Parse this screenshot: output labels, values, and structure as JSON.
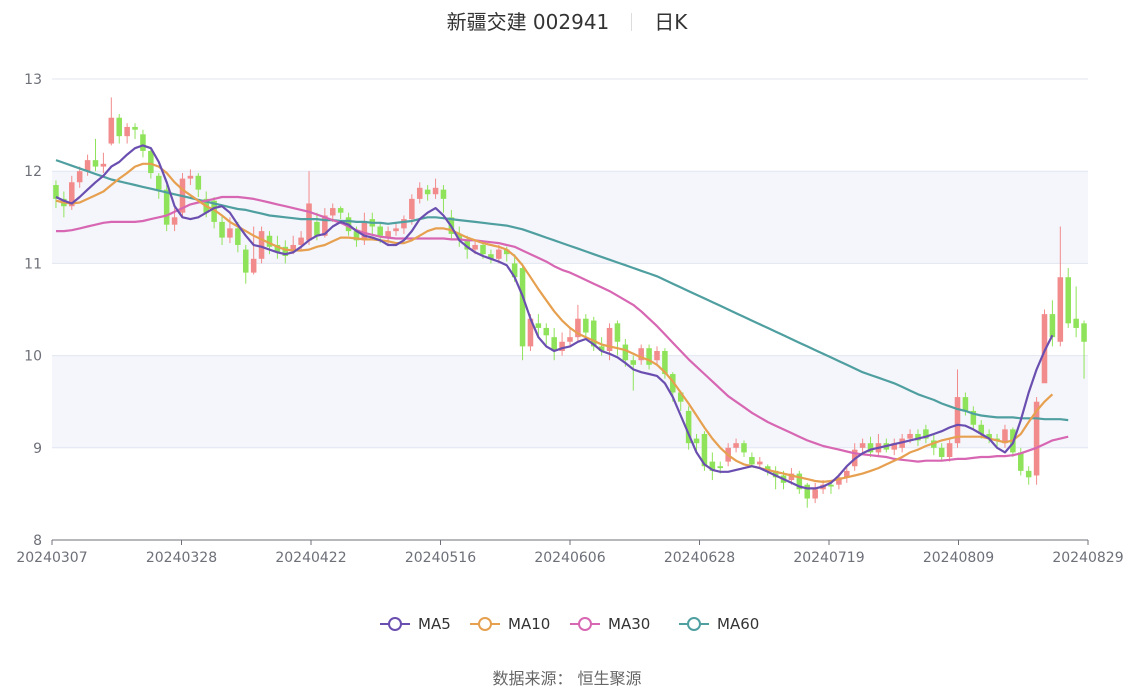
{
  "title": {
    "name": "新疆交建 002941",
    "period": "日K"
  },
  "source": "数据来源： 恒生聚源",
  "colors": {
    "up": "#f28b8b",
    "down": "#8fe35a",
    "ma5": "#6a4fb0",
    "ma10": "#e6a04f",
    "ma30": "#d767b3",
    "ma60": "#4f9fa0"
  },
  "chart_data": {
    "type": "candlestick",
    "ylim": [
      8,
      13
    ],
    "y_ticks": [
      "8",
      "9",
      "10",
      "11",
      "12",
      "13"
    ],
    "x_ticks": [
      "20240307",
      "20240328",
      "20240422",
      "20240516",
      "20240606",
      "20240628",
      "20240719",
      "20240809",
      "20240829"
    ],
    "legend_position": "bottom",
    "legend": [
      "MA5",
      "MA10",
      "MA30",
      "MA60"
    ],
    "candles": [
      [
        11.85,
        11.7,
        11.9,
        11.6
      ],
      [
        11.7,
        11.62,
        11.78,
        11.5
      ],
      [
        11.62,
        11.88,
        11.95,
        11.58
      ],
      [
        11.88,
        12.0,
        12.05,
        11.82
      ],
      [
        12.0,
        12.12,
        12.18,
        11.95
      ],
      [
        12.12,
        12.05,
        12.35,
        12.0
      ],
      [
        12.05,
        12.08,
        12.2,
        11.98
      ],
      [
        12.3,
        12.58,
        12.8,
        12.28
      ],
      [
        12.58,
        12.38,
        12.62,
        12.3
      ],
      [
        12.38,
        12.48,
        12.52,
        12.3
      ],
      [
        12.48,
        12.45,
        12.52,
        12.35
      ],
      [
        12.4,
        12.22,
        12.45,
        12.15
      ],
      [
        12.22,
        11.98,
        12.25,
        11.92
      ],
      [
        11.95,
        11.8,
        11.98,
        11.7
      ],
      [
        11.8,
        11.42,
        11.85,
        11.35
      ],
      [
        11.42,
        11.5,
        11.6,
        11.35
      ],
      [
        11.55,
        11.92,
        11.98,
        11.5
      ],
      [
        11.92,
        11.95,
        12.02,
        11.85
      ],
      [
        11.95,
        11.8,
        11.98,
        11.72
      ],
      [
        11.7,
        11.55,
        11.78,
        11.5
      ],
      [
        11.68,
        11.45,
        11.72,
        11.38
      ],
      [
        11.45,
        11.28,
        11.52,
        11.2
      ],
      [
        11.28,
        11.38,
        11.5,
        11.22
      ],
      [
        11.38,
        11.2,
        11.45,
        11.12
      ],
      [
        11.15,
        10.9,
        11.2,
        10.78
      ],
      [
        10.9,
        11.05,
        11.4,
        10.88
      ],
      [
        11.05,
        11.35,
        11.4,
        11.0
      ],
      [
        11.3,
        11.18,
        11.35,
        11.1
      ],
      [
        11.2,
        11.12,
        11.3,
        11.05
      ],
      [
        11.18,
        11.08,
        11.25,
        11.0
      ],
      [
        11.15,
        11.2,
        11.3,
        11.1
      ],
      [
        11.2,
        11.28,
        11.35,
        11.15
      ],
      [
        11.25,
        11.65,
        12.0,
        11.2
      ],
      [
        11.45,
        11.3,
        11.55,
        11.25
      ],
      [
        11.3,
        11.52,
        11.6,
        11.28
      ],
      [
        11.52,
        11.6,
        11.65,
        11.45
      ],
      [
        11.6,
        11.55,
        11.62,
        11.48
      ],
      [
        11.5,
        11.35,
        11.55,
        11.3
      ],
      [
        11.35,
        11.25,
        11.4,
        11.18
      ],
      [
        11.25,
        11.45,
        11.55,
        11.2
      ],
      [
        11.48,
        11.4,
        11.55,
        11.3
      ],
      [
        11.4,
        11.3,
        11.45,
        11.22
      ],
      [
        11.28,
        11.35,
        11.4,
        11.2
      ],
      [
        11.35,
        11.38,
        11.45,
        11.3
      ],
      [
        11.38,
        11.48,
        11.52,
        11.32
      ],
      [
        11.48,
        11.7,
        11.75,
        11.42
      ],
      [
        11.7,
        11.82,
        11.88,
        11.65
      ],
      [
        11.8,
        11.75,
        11.85,
        11.68
      ],
      [
        11.75,
        11.82,
        11.92,
        11.7
      ],
      [
        11.8,
        11.7,
        11.85,
        11.55
      ],
      [
        11.5,
        11.32,
        11.58,
        11.25
      ],
      [
        11.32,
        11.25,
        11.4,
        11.18
      ],
      [
        11.25,
        11.15,
        11.3,
        11.05
      ],
      [
        11.15,
        11.2,
        11.25,
        11.1
      ],
      [
        11.2,
        11.1,
        11.25,
        11.05
      ],
      [
        11.1,
        11.05,
        11.15,
        11.0
      ],
      [
        11.05,
        11.15,
        11.2,
        11.0
      ],
      [
        11.15,
        11.1,
        11.18,
        11.02
      ],
      [
        11.0,
        10.85,
        11.1,
        10.8
      ],
      [
        10.95,
        10.1,
        11.0,
        9.95
      ],
      [
        10.1,
        10.4,
        10.45,
        10.05
      ],
      [
        10.35,
        10.3,
        10.45,
        10.2
      ],
      [
        10.3,
        10.22,
        10.35,
        10.12
      ],
      [
        10.2,
        10.05,
        10.3,
        9.95
      ],
      [
        10.05,
        10.15,
        10.25,
        10.0
      ],
      [
        10.15,
        10.2,
        10.3,
        10.1
      ],
      [
        10.2,
        10.4,
        10.55,
        10.15
      ],
      [
        10.4,
        10.25,
        10.45,
        10.18
      ],
      [
        10.38,
        10.1,
        10.42,
        10.05
      ],
      [
        10.1,
        10.05,
        10.2,
        10.0
      ],
      [
        10.05,
        10.3,
        10.35,
        9.95
      ],
      [
        10.35,
        10.15,
        10.38,
        10.0
      ],
      [
        10.12,
        9.95,
        10.18,
        9.88
      ],
      [
        9.95,
        9.9,
        10.0,
        9.62
      ],
      [
        9.95,
        10.08,
        10.12,
        9.9
      ],
      [
        10.08,
        9.9,
        10.12,
        9.85
      ],
      [
        9.95,
        10.05,
        10.1,
        9.9
      ],
      [
        10.05,
        9.8,
        10.08,
        9.75
      ],
      [
        9.8,
        9.6,
        9.82,
        9.5
      ],
      [
        9.6,
        9.5,
        9.62,
        9.4
      ],
      [
        9.4,
        9.05,
        9.45,
        8.98
      ],
      [
        9.1,
        9.05,
        9.15,
        8.95
      ],
      [
        9.15,
        8.8,
        9.18,
        8.75
      ],
      [
        8.85,
        8.75,
        8.95,
        8.65
      ],
      [
        8.8,
        8.78,
        8.85,
        8.72
      ],
      [
        8.85,
        9.0,
        9.05,
        8.8
      ],
      [
        9.0,
        9.05,
        9.1,
        8.95
      ],
      [
        9.05,
        8.95,
        9.08,
        8.9
      ],
      [
        8.9,
        8.82,
        8.95,
        8.8
      ],
      [
        8.82,
        8.85,
        8.9,
        8.78
      ],
      [
        8.8,
        8.75,
        8.82,
        8.7
      ],
      [
        8.75,
        8.68,
        8.8,
        8.55
      ],
      [
        8.7,
        8.62,
        8.75,
        8.55
      ],
      [
        8.65,
        8.72,
        8.78,
        8.6
      ],
      [
        8.72,
        8.55,
        8.75,
        8.5
      ],
      [
        8.6,
        8.45,
        8.62,
        8.35
      ],
      [
        8.45,
        8.55,
        8.62,
        8.4
      ],
      [
        8.55,
        8.6,
        8.65,
        8.5
      ],
      [
        8.6,
        8.58,
        8.65,
        8.5
      ],
      [
        8.6,
        8.68,
        8.72,
        8.55
      ],
      [
        8.68,
        8.75,
        8.8,
        8.62
      ],
      [
        8.8,
        8.98,
        9.05,
        8.75
      ],
      [
        9.0,
        9.05,
        9.1,
        8.95
      ],
      [
        9.05,
        8.95,
        9.12,
        8.9
      ],
      [
        8.95,
        9.05,
        9.15,
        8.9
      ],
      [
        9.05,
        8.98,
        9.1,
        8.95
      ],
      [
        8.98,
        9.05,
        9.1,
        8.92
      ],
      [
        9.0,
        9.1,
        9.15,
        8.95
      ],
      [
        9.1,
        9.15,
        9.2,
        9.05
      ],
      [
        9.15,
        9.08,
        9.2,
        9.02
      ],
      [
        9.2,
        9.1,
        9.25,
        9.05
      ],
      [
        9.08,
        9.0,
        9.15,
        8.92
      ],
      [
        9.0,
        8.9,
        9.05,
        8.85
      ],
      [
        8.9,
        9.05,
        9.1,
        8.85
      ],
      [
        9.05,
        9.55,
        9.85,
        9.0
      ],
      [
        9.55,
        9.4,
        9.6,
        9.35
      ],
      [
        9.4,
        9.25,
        9.45,
        9.2
      ],
      [
        9.25,
        9.15,
        9.3,
        9.1
      ],
      [
        9.15,
        9.1,
        9.2,
        9.05
      ],
      [
        9.1,
        9.08,
        9.15,
        9.0
      ],
      [
        9.05,
        9.2,
        9.25,
        9.0
      ],
      [
        9.2,
        8.95,
        9.22,
        8.9
      ],
      [
        8.95,
        8.75,
        9.0,
        8.7
      ],
      [
        8.75,
        8.68,
        8.8,
        8.6
      ],
      [
        8.7,
        9.5,
        9.55,
        8.6
      ],
      [
        9.7,
        10.45,
        10.5,
        10.05
      ],
      [
        10.45,
        10.2,
        10.6,
        10.1
      ],
      [
        10.15,
        10.85,
        11.4,
        10.1
      ],
      [
        10.85,
        10.35,
        10.95,
        10.3
      ],
      [
        10.4,
        10.3,
        10.75,
        10.2
      ],
      [
        10.35,
        10.15,
        10.38,
        9.75
      ]
    ],
    "ma5": [
      11.72,
      11.68,
      11.65,
      11.72,
      11.8,
      11.88,
      11.95,
      12.05,
      12.1,
      12.18,
      12.25,
      12.28,
      12.25,
      12.1,
      11.88,
      11.62,
      11.5,
      11.48,
      11.5,
      11.55,
      11.6,
      11.62,
      11.55,
      11.42,
      11.3,
      11.2,
      11.18,
      11.15,
      11.12,
      11.1,
      11.12,
      11.18,
      11.25,
      11.3,
      11.32,
      11.4,
      11.45,
      11.42,
      11.35,
      11.3,
      11.28,
      11.25,
      11.2,
      11.2,
      11.25,
      11.35,
      11.48,
      11.55,
      11.6,
      11.52,
      11.4,
      11.25,
      11.18,
      11.12,
      11.08,
      11.05,
      11.02,
      10.98,
      10.85,
      10.65,
      10.4,
      10.2,
      10.1,
      10.05,
      10.08,
      10.1,
      10.15,
      10.18,
      10.12,
      10.05,
      10.02,
      9.98,
      9.92,
      9.85,
      9.82,
      9.8,
      9.78,
      9.7,
      9.55,
      9.35,
      9.15,
      8.95,
      8.82,
      8.76,
      8.74,
      8.74,
      8.76,
      8.78,
      8.8,
      8.78,
      8.74,
      8.7,
      8.66,
      8.62,
      8.58,
      8.56,
      8.56,
      8.58,
      8.62,
      8.7,
      8.8,
      8.88,
      8.94,
      8.98,
      9.0,
      9.02,
      9.04,
      9.06,
      9.08,
      9.1,
      9.12,
      9.15,
      9.18,
      9.22,
      9.25,
      9.24,
      9.2,
      9.15,
      9.1,
      9.0,
      8.95,
      9.05,
      9.3,
      9.6,
      9.85,
      10.05,
      10.22
    ],
    "ma10": [
      11.68,
      11.66,
      11.65,
      11.66,
      11.7,
      11.74,
      11.78,
      11.85,
      11.92,
      11.98,
      12.05,
      12.08,
      12.08,
      12.05,
      11.98,
      11.88,
      11.8,
      11.74,
      11.68,
      11.62,
      11.58,
      11.52,
      11.45,
      11.4,
      11.35,
      11.3,
      11.26,
      11.22,
      11.18,
      11.15,
      11.14,
      11.14,
      11.15,
      11.18,
      11.2,
      11.24,
      11.28,
      11.28,
      11.27,
      11.26,
      11.26,
      11.25,
      11.24,
      11.22,
      11.22,
      11.25,
      11.3,
      11.35,
      11.38,
      11.38,
      11.36,
      11.32,
      11.28,
      11.25,
      11.22,
      11.2,
      11.18,
      11.15,
      11.08,
      10.98,
      10.85,
      10.72,
      10.6,
      10.48,
      10.38,
      10.3,
      10.24,
      10.2,
      10.16,
      10.12,
      10.1,
      10.08,
      10.06,
      10.02,
      9.98,
      9.95,
      9.9,
      9.82,
      9.72,
      9.6,
      9.48,
      9.35,
      9.22,
      9.1,
      9.0,
      8.92,
      8.86,
      8.82,
      8.8,
      8.78,
      8.76,
      8.74,
      8.72,
      8.7,
      8.68,
      8.66,
      8.64,
      8.63,
      8.64,
      8.66,
      8.68,
      8.7,
      8.72,
      8.75,
      8.78,
      8.82,
      8.86,
      8.9,
      8.95,
      8.98,
      9.02,
      9.05,
      9.08,
      9.1,
      9.12,
      9.12,
      9.12,
      9.12,
      9.1,
      9.08,
      9.06,
      9.08,
      9.15,
      9.28,
      9.4,
      9.5,
      9.58
    ],
    "ma30": [
      11.35,
      11.35,
      11.36,
      11.38,
      11.4,
      11.42,
      11.44,
      11.45,
      11.45,
      11.45,
      11.45,
      11.46,
      11.48,
      11.5,
      11.52,
      11.56,
      11.6,
      11.64,
      11.66,
      11.68,
      11.7,
      11.72,
      11.72,
      11.72,
      11.71,
      11.7,
      11.68,
      11.66,
      11.64,
      11.62,
      11.6,
      11.58,
      11.56,
      11.53,
      11.5,
      11.47,
      11.44,
      11.4,
      11.36,
      11.33,
      11.31,
      11.29,
      11.28,
      11.27,
      11.27,
      11.27,
      11.27,
      11.27,
      11.27,
      11.27,
      11.26,
      11.26,
      11.25,
      11.25,
      11.24,
      11.23,
      11.22,
      11.2,
      11.18,
      11.14,
      11.1,
      11.06,
      11.02,
      10.97,
      10.93,
      10.9,
      10.86,
      10.82,
      10.78,
      10.74,
      10.7,
      10.65,
      10.6,
      10.55,
      10.48,
      10.4,
      10.32,
      10.23,
      10.14,
      10.05,
      9.96,
      9.88,
      9.8,
      9.72,
      9.64,
      9.56,
      9.5,
      9.44,
      9.38,
      9.33,
      9.28,
      9.24,
      9.2,
      9.16,
      9.12,
      9.08,
      9.05,
      9.02,
      9.0,
      8.98,
      8.96,
      8.94,
      8.93,
      8.92,
      8.91,
      8.9,
      8.88,
      8.87,
      8.86,
      8.85,
      8.86,
      8.86,
      8.86,
      8.87,
      8.88,
      8.88,
      8.89,
      8.9,
      8.9,
      8.91,
      8.91,
      8.92,
      8.94,
      8.97,
      9.0,
      9.04,
      9.08,
      9.1,
      9.12
    ],
    "ma60": [
      12.12,
      12.09,
      12.06,
      12.03,
      12.0,
      11.97,
      11.94,
      11.91,
      11.89,
      11.87,
      11.85,
      11.83,
      11.81,
      11.79,
      11.77,
      11.75,
      11.73,
      11.71,
      11.69,
      11.67,
      11.65,
      11.63,
      11.61,
      11.59,
      11.58,
      11.56,
      11.54,
      11.52,
      11.51,
      11.5,
      11.49,
      11.48,
      11.48,
      11.48,
      11.47,
      11.47,
      11.46,
      11.46,
      11.45,
      11.45,
      11.44,
      11.44,
      11.43,
      11.44,
      11.45,
      11.46,
      11.48,
      11.5,
      11.5,
      11.49,
      11.48,
      11.47,
      11.46,
      11.45,
      11.44,
      11.43,
      11.42,
      11.41,
      11.39,
      11.37,
      11.34,
      11.31,
      11.28,
      11.25,
      11.22,
      11.19,
      11.16,
      11.13,
      11.1,
      11.07,
      11.04,
      11.01,
      10.98,
      10.95,
      10.92,
      10.89,
      10.86,
      10.82,
      10.78,
      10.74,
      10.7,
      10.66,
      10.62,
      10.58,
      10.54,
      10.5,
      10.46,
      10.42,
      10.38,
      10.34,
      10.3,
      10.26,
      10.22,
      10.18,
      10.14,
      10.1,
      10.06,
      10.02,
      9.98,
      9.94,
      9.9,
      9.86,
      9.82,
      9.79,
      9.76,
      9.73,
      9.7,
      9.66,
      9.62,
      9.58,
      9.55,
      9.52,
      9.48,
      9.45,
      9.42,
      9.4,
      9.37,
      9.35,
      9.34,
      9.33,
      9.33,
      9.33,
      9.32,
      9.32,
      9.32,
      9.31,
      9.31,
      9.31,
      9.3
    ]
  }
}
